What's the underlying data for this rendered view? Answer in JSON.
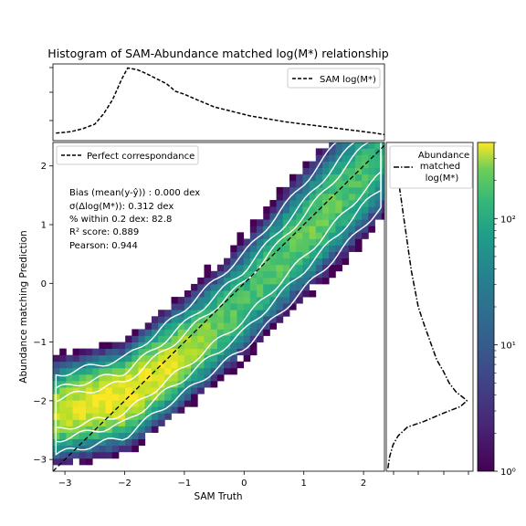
{
  "chart_data": [
    {
      "panel": "top_marginal",
      "type": "line",
      "title": "Histogram of SAM-Abundance matched log(M*) relationship",
      "legend": {
        "label": "SAM log(M*)",
        "placement": "top-right"
      },
      "series": [
        {
          "name": "SAM log(M*)",
          "x": [
            -3.15,
            -2.9,
            -2.7,
            -2.5,
            -2.35,
            -2.2,
            -2.05,
            -1.95,
            -1.8,
            -1.65,
            -1.5,
            -1.3,
            -1.15,
            -1.0,
            -0.8,
            -0.5,
            -0.2,
            0.1,
            0.4,
            0.7,
            1.0,
            1.3,
            1.6,
            1.9,
            2.2,
            2.35
          ],
          "y": [
            0.1,
            0.12,
            0.16,
            0.22,
            0.36,
            0.55,
            0.82,
            0.97,
            0.95,
            0.9,
            0.84,
            0.76,
            0.66,
            0.62,
            0.55,
            0.45,
            0.39,
            0.33,
            0.29,
            0.25,
            0.22,
            0.19,
            0.16,
            0.13,
            0.1,
            0.08
          ]
        }
      ],
      "xlim": [
        -3.2,
        2.35
      ],
      "grid": false
    },
    {
      "panel": "main",
      "type": "heatmap",
      "xlabel": "SAM Truth",
      "ylabel": "Abundance matching Prediction",
      "xlim": [
        -3.2,
        2.35
      ],
      "ylim": [
        -3.2,
        2.4
      ],
      "x_ticks": [
        "−3",
        "−2",
        "−1",
        "0",
        "1",
        "2"
      ],
      "y_ticks": [
        "−3",
        "−2",
        "−1",
        "0",
        "1",
        "2"
      ],
      "legend": {
        "label": "Perfect correspondance",
        "placement": "top-left"
      },
      "stats": {
        "bias": "Bias (mean(y-ŷ)) : 0.000 dex",
        "sigma": "σ(Δlog(M*)): 0.312 dex",
        "within": "% within 0.2 dex:  82.8",
        "r2": "R² score:  0.889",
        "pearson": "Pearson:  0.944"
      },
      "colorbar": {
        "scale": "log",
        "min": 1,
        "max": 400,
        "tick_labels": [
          "10⁰",
          "10¹",
          "10²"
        ],
        "colormap": "viridis"
      },
      "density_ridge": [
        [
          -3.0,
          -2.2
        ],
        [
          -2.0,
          -1.95
        ],
        [
          -1.0,
          -1.15
        ],
        [
          0.0,
          -0.3
        ],
        [
          1.0,
          0.8
        ],
        [
          2.0,
          1.95
        ]
      ],
      "peak_counts": 400,
      "grid": false
    },
    {
      "panel": "right_marginal",
      "type": "line",
      "legend": {
        "label": "Abundance matched log(M*)",
        "placement": "top"
      },
      "series": [
        {
          "name": "Abundance matched log(M*)",
          "y": [
            -3.15,
            -2.95,
            -2.75,
            -2.6,
            -2.45,
            -2.35,
            -2.2,
            -2.1,
            -2.0,
            -1.95,
            -1.85,
            -1.7,
            -1.5,
            -1.3,
            -1.1,
            -0.9,
            -0.7,
            -0.4,
            -0.1,
            0.2,
            0.5,
            0.8,
            1.1,
            1.4,
            1.7,
            2.0,
            2.3
          ],
          "x": [
            0.02,
            0.04,
            0.08,
            0.14,
            0.25,
            0.45,
            0.7,
            0.88,
            0.96,
            0.92,
            0.83,
            0.75,
            0.68,
            0.6,
            0.55,
            0.5,
            0.45,
            0.38,
            0.34,
            0.3,
            0.27,
            0.24,
            0.21,
            0.18,
            0.15,
            0.11,
            0.07
          ]
        }
      ],
      "ylim": [
        -3.2,
        2.4
      ],
      "grid": false
    }
  ]
}
